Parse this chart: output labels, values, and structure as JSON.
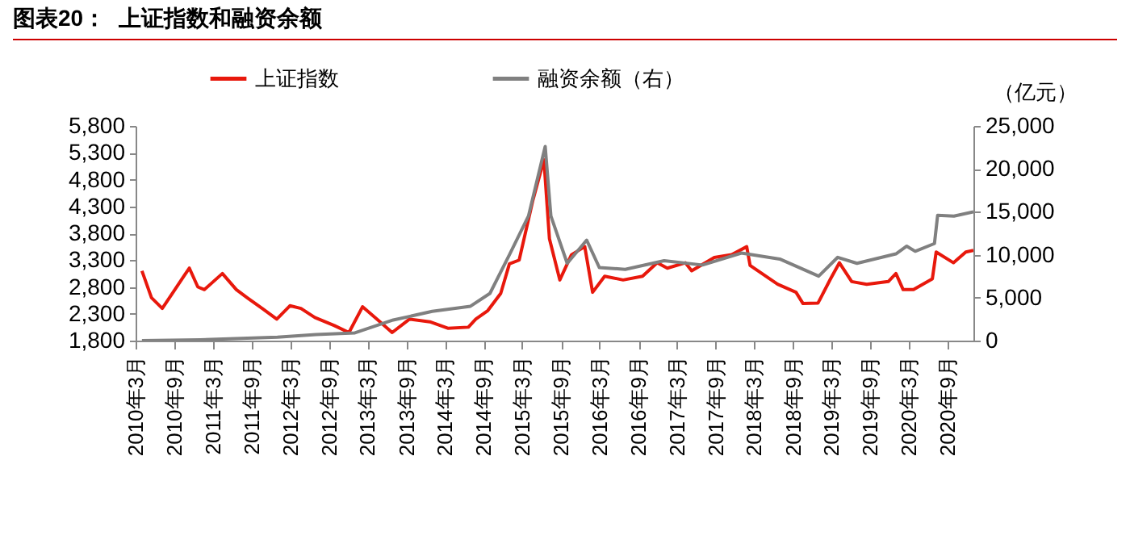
{
  "chart_data": {
    "type": "line",
    "title": "图表20：  上证指数和融资余额",
    "y2label": "（亿元）",
    "xlim": [
      "2010-03",
      "2020-12-31"
    ],
    "xticks": [
      {
        "value": "2010-03",
        "label": "2010年3月"
      },
      {
        "value": "2010-09",
        "label": "2010年9月"
      },
      {
        "value": "2011-03",
        "label": "2011年3月"
      },
      {
        "value": "2011-09",
        "label": "2011年9月"
      },
      {
        "value": "2012-03",
        "label": "2012年3月"
      },
      {
        "value": "2012-09",
        "label": "2012年9月"
      },
      {
        "value": "2013-03",
        "label": "2013年3月"
      },
      {
        "value": "2013-09",
        "label": "2013年9月"
      },
      {
        "value": "2014-03",
        "label": "2014年3月"
      },
      {
        "value": "2014-09",
        "label": "2014年9月"
      },
      {
        "value": "2015-03",
        "label": "2015年3月"
      },
      {
        "value": "2015-09",
        "label": "2015年9月"
      },
      {
        "value": "2016-03",
        "label": "2016年3月"
      },
      {
        "value": "2016-09",
        "label": "2016年9月"
      },
      {
        "value": "2017-03",
        "label": "2017年3月"
      },
      {
        "value": "2017-09",
        "label": "2017年9月"
      },
      {
        "value": "2018-03",
        "label": "2018年3月"
      },
      {
        "value": "2018-09",
        "label": "2018年9月"
      },
      {
        "value": "2019-03",
        "label": "2019年3月"
      },
      {
        "value": "2019-09",
        "label": "2019年9月"
      },
      {
        "value": "2020-03",
        "label": "2020年3月"
      },
      {
        "value": "2020-09",
        "label": "2020年9月"
      }
    ],
    "ylim": [
      1800,
      5800
    ],
    "yticks": [
      {
        "value": 1800,
        "label": "1,800"
      },
      {
        "value": 2300,
        "label": "2,300"
      },
      {
        "value": 2800,
        "label": "2,800"
      },
      {
        "value": 3300,
        "label": "3,300"
      },
      {
        "value": 3800,
        "label": "3,800"
      },
      {
        "value": 4300,
        "label": "4,300"
      },
      {
        "value": 4800,
        "label": "4,800"
      },
      {
        "value": 5300,
        "label": "5,300"
      },
      {
        "value": 5800,
        "label": "5,800"
      }
    ],
    "y2lim": [
      0,
      25000
    ],
    "y2ticks": [
      {
        "value": 0,
        "label": "0"
      },
      {
        "value": 5000,
        "label": "5,000"
      },
      {
        "value": 10000,
        "label": "10,000"
      },
      {
        "value": 15000,
        "label": "15,000"
      },
      {
        "value": 20000,
        "label": "20,000"
      },
      {
        "value": 25000,
        "label": "25,000"
      }
    ],
    "series": [
      {
        "name": "上证指数",
        "color": "#e8180c",
        "x": [
          "2010-03-31",
          "2010-05-15",
          "2010-07-05",
          "2010-08-15",
          "2010-10-15",
          "2010-11-10",
          "2010-12-20",
          "2011-01-20",
          "2011-04-15",
          "2011-06-20",
          "2011-08-10",
          "2011-10-20",
          "2011-12-28",
          "2012-02-28",
          "2012-04-20",
          "2012-06-25",
          "2012-09-25",
          "2012-12-03",
          "2013-02-05",
          "2013-04-20",
          "2013-06-25",
          "2013-09-15",
          "2013-12-20",
          "2014-03-15",
          "2014-06-20",
          "2014-07-25",
          "2014-09-20",
          "2014-11-20",
          "2014-12-31",
          "2015-02-15",
          "2015-04-20",
          "2015-06-12",
          "2015-07-08",
          "2015-08-26",
          "2015-10-20",
          "2015-12-22",
          "2016-01-28",
          "2016-03-25",
          "2016-06-20",
          "2016-09-20",
          "2016-11-28",
          "2017-01-15",
          "2017-04-10",
          "2017-05-10",
          "2017-08-25",
          "2017-11-15",
          "2018-01-25",
          "2018-02-10",
          "2018-06-20",
          "2018-09-15",
          "2018-10-18",
          "2018-12-28",
          "2019-02-25",
          "2019-04-08",
          "2019-06-05",
          "2019-08-15",
          "2019-11-25",
          "2019-12-31",
          "2020-02-03",
          "2020-03-23",
          "2020-06-20",
          "2020-07-08",
          "2020-09-28",
          "2020-11-25",
          "2020-12-31"
        ],
        "values": [
          3100,
          2600,
          2400,
          2640,
          3000,
          3150,
          2800,
          2750,
          3050,
          2750,
          2600,
          2400,
          2200,
          2450,
          2400,
          2230,
          2080,
          1950,
          2430,
          2180,
          1950,
          2200,
          2150,
          2030,
          2050,
          2200,
          2360,
          2680,
          3230,
          3300,
          4400,
          5170,
          3700,
          2930,
          3400,
          3550,
          2700,
          3000,
          2930,
          3000,
          3250,
          3150,
          3250,
          3100,
          3350,
          3400,
          3550,
          3200,
          2850,
          2700,
          2490,
          2500,
          2950,
          3250,
          2900,
          2850,
          2900,
          3050,
          2750,
          2750,
          2950,
          3450,
          3250,
          3450,
          3480
        ]
      },
      {
        "name": "融资余额（右）",
        "color": "#808080",
        "axis": "y2",
        "x": [
          "2010-03-31",
          "2010-12-31",
          "2011-12-31",
          "2012-06-30",
          "2012-12-31",
          "2013-06-30",
          "2013-12-31",
          "2014-06-30",
          "2014-09-30",
          "2014-12-31",
          "2015-03-31",
          "2015-06-18",
          "2015-07-15",
          "2015-09-30",
          "2015-12-31",
          "2016-02-29",
          "2016-06-30",
          "2016-12-31",
          "2017-06-30",
          "2017-12-31",
          "2018-06-30",
          "2018-12-31",
          "2019-03-31",
          "2019-06-30",
          "2019-12-31",
          "2020-02-20",
          "2020-03-31",
          "2020-06-30",
          "2020-07-15",
          "2020-09-30",
          "2020-12-31"
        ],
        "values": [
          0,
          100,
          400,
          700,
          900,
          2400,
          3400,
          4000,
          5500,
          10000,
          14500,
          22600,
          14500,
          9000,
          11700,
          8500,
          8300,
          9300,
          8800,
          10200,
          9500,
          7500,
          9700,
          9000,
          10100,
          11000,
          10400,
          11300,
          14600,
          14500,
          15000
        ]
      }
    ],
    "legend": "top",
    "grid": false,
    "marker": "none",
    "line_style": "solid"
  }
}
